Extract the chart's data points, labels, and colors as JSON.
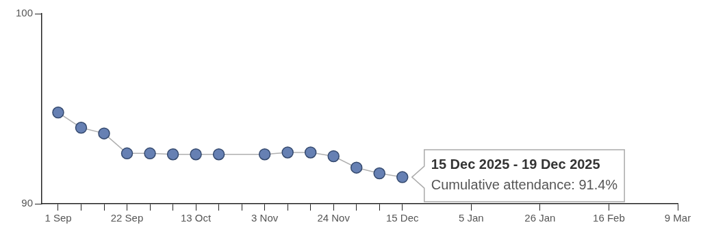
{
  "chart_data": {
    "type": "line",
    "x": [
      "2025-09-01",
      "2025-09-08",
      "2025-09-15",
      "2025-09-22",
      "2025-09-29",
      "2025-10-06",
      "2025-10-13",
      "2025-10-20",
      "2025-11-03",
      "2025-11-10",
      "2025-11-17",
      "2025-11-24",
      "2025-12-01",
      "2025-12-08",
      "2025-12-15"
    ],
    "series": [
      {
        "color": "#6680b3",
        "values": [
          94.8,
          94.0,
          93.7,
          92.65,
          92.65,
          92.6,
          92.6,
          92.6,
          92.6,
          92.7,
          92.7,
          92.5,
          91.9,
          91.6,
          91.4
        ]
      }
    ],
    "xlim": [
      "2025-08-27",
      "2026-03-09"
    ],
    "xticks": [
      {
        "value": "2025-09-01",
        "label": "1 Sep"
      },
      {
        "value": "2025-09-08",
        "label": null
      },
      {
        "value": "2025-09-15",
        "label": null
      },
      {
        "value": "2025-09-22",
        "label": "22 Sep"
      },
      {
        "value": "2025-09-29",
        "label": null
      },
      {
        "value": "2025-10-06",
        "label": null
      },
      {
        "value": "2025-10-13",
        "label": "13 Oct"
      },
      {
        "value": "2025-10-20",
        "label": null
      },
      {
        "value": "2025-10-27",
        "label": null
      },
      {
        "value": "2025-11-03",
        "label": "3 Nov"
      },
      {
        "value": "2025-11-10",
        "label": null
      },
      {
        "value": "2025-11-17",
        "label": null
      },
      {
        "value": "2025-11-24",
        "label": "24 Nov"
      },
      {
        "value": "2025-12-01",
        "label": null
      },
      {
        "value": "2025-12-08",
        "label": null
      },
      {
        "value": "2025-12-15",
        "label": "15 Dec"
      },
      {
        "value": "2026-01-05",
        "label": "5 Jan"
      },
      {
        "value": "2026-01-26",
        "label": "26 Jan"
      },
      {
        "value": "2026-02-16",
        "label": "16 Feb"
      },
      {
        "value": "2026-03-09",
        "label": "9 Mar"
      }
    ],
    "ylim": [
      90,
      100
    ],
    "yticks": [
      90,
      100
    ],
    "grid": false,
    "legend": false,
    "marker": "circle",
    "line_style": "solid",
    "annotations": [
      {
        "text": "15 Dec 2025 - 19 Dec 2025",
        "x": "2025-12-15",
        "y": 91.4
      },
      "Cumulative attendance: 91.4%"
    ]
  }
}
